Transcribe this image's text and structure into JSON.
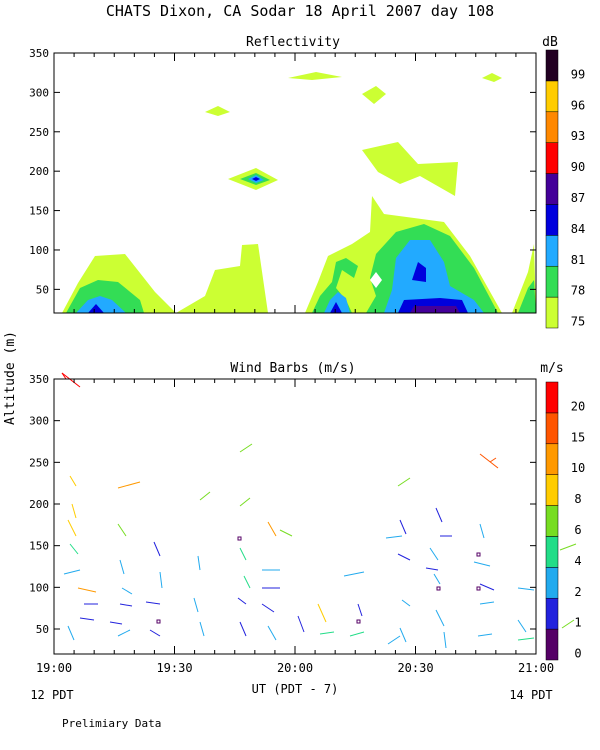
{
  "main_title": "CHATS Dixon, CA  Sodar  18 April 2007  day 108",
  "footer_note": "Prelimiary Data",
  "shared_axes": {
    "ylabel": "Altitude (m)",
    "xlabel": "UT  (PDT - 7)",
    "x_ticks": [
      "19:00",
      "19:30",
      "20:00",
      "20:30",
      "21:00"
    ],
    "x_start_note": "12 PDT",
    "x_end_note": "14 PDT"
  },
  "chart_data": [
    {
      "type": "heatmap",
      "title": "Reflectivity",
      "colorbar_unit": "dB",
      "colorbar_ticks": [
        "75",
        "78",
        "81",
        "84",
        "87",
        "90",
        "93",
        "96",
        "99"
      ],
      "colors": [
        "#ccff33",
        "#33dd55",
        "#22aaff",
        "#0000dd",
        "#440099",
        "#ff0000",
        "#ff8800",
        "#ffcc00",
        "#220022"
      ],
      "xlim": [
        "19:00",
        "21:00"
      ],
      "ylim": [
        20,
        350
      ],
      "y_ticks": [
        "50",
        "100",
        "150",
        "200",
        "250",
        "300",
        "350"
      ],
      "grid": false
    },
    {
      "type": "scatter",
      "title": "Wind Barbs (m/s)",
      "colorbar_unit": "m/s",
      "colorbar_ticks": [
        "0",
        "1",
        "2",
        "4",
        "6",
        "8",
        "10",
        "15",
        "20"
      ],
      "colors": [
        "#550066",
        "#2222dd",
        "#22aaee",
        "#22dd88",
        "#77dd22",
        "#ffcc00",
        "#ff9900",
        "#ff5500",
        "#ff0000"
      ],
      "xlim": [
        "19:00",
        "21:00"
      ],
      "ylim": [
        20,
        350
      ],
      "y_ticks": [
        "50",
        "100",
        "150",
        "200",
        "250",
        "300",
        "350"
      ],
      "grid": false
    }
  ]
}
